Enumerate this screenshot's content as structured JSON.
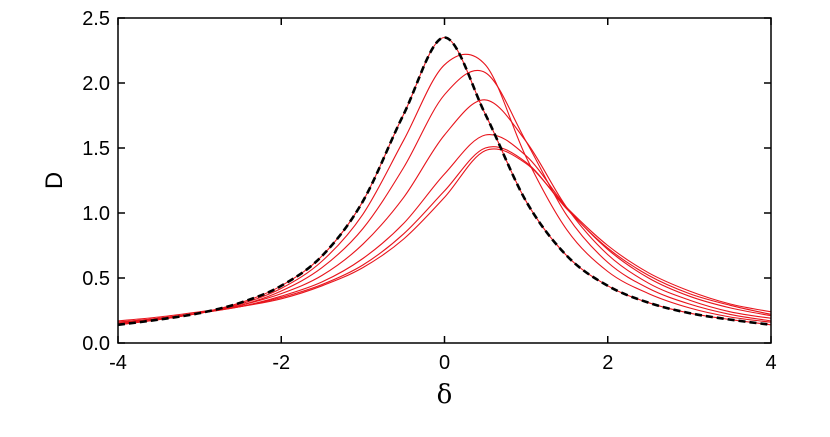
{
  "chart_data": {
    "type": "line",
    "title": "",
    "xlabel": "δ",
    "ylabel": "D",
    "xlim": [
      -4,
      4
    ],
    "ylim": [
      0,
      2.5
    ],
    "x_ticks": [
      -4,
      -2,
      0,
      2,
      4
    ],
    "y_ticks": [
      0.0,
      0.5,
      1.0,
      1.5,
      2.0,
      2.5
    ],
    "x_tick_labels": [
      "-4",
      "-2",
      "0",
      "2",
      "4"
    ],
    "y_tick_labels": [
      "0.0",
      "0.5",
      "1.0",
      "1.5",
      "2.0",
      "2.5"
    ],
    "grid": false,
    "legend": "none",
    "colors": {
      "series": "#e8141c",
      "reference": "#000000"
    },
    "x": [
      -4,
      -3.5,
      -3,
      -2.5,
      -2,
      -1.5,
      -1,
      -0.5,
      0,
      0.5,
      1,
      1.5,
      2,
      2.5,
      3,
      3.5,
      4
    ],
    "series": [
      {
        "style": "solid-red",
        "values": [
          0.14,
          0.18,
          0.23,
          0.31,
          0.44,
          0.67,
          1.09,
          1.76,
          2.35,
          1.76,
          1.09,
          0.67,
          0.44,
          0.31,
          0.23,
          0.18,
          0.14
        ]
      },
      {
        "style": "solid-red",
        "values": [
          0.14,
          0.18,
          0.23,
          0.3,
          0.42,
          0.63,
          0.99,
          1.56,
          2.14,
          2.14,
          1.43,
          0.87,
          0.55,
          0.38,
          0.27,
          0.2,
          0.16
        ]
      },
      {
        "style": "solid-red",
        "values": [
          0.15,
          0.18,
          0.23,
          0.29,
          0.4,
          0.58,
          0.88,
          1.35,
          1.91,
          2.08,
          1.55,
          0.98,
          0.62,
          0.42,
          0.3,
          0.22,
          0.17
        ]
      },
      {
        "style": "solid-red",
        "values": [
          0.15,
          0.19,
          0.23,
          0.29,
          0.38,
          0.52,
          0.76,
          1.12,
          1.6,
          1.87,
          1.55,
          1.04,
          0.68,
          0.46,
          0.33,
          0.24,
          0.19
        ]
      },
      {
        "style": "solid-red",
        "values": [
          0.16,
          0.19,
          0.23,
          0.28,
          0.36,
          0.47,
          0.65,
          0.92,
          1.3,
          1.6,
          1.44,
          1.04,
          0.72,
          0.5,
          0.36,
          0.27,
          0.21
        ]
      },
      {
        "style": "solid-red",
        "values": [
          0.16,
          0.19,
          0.23,
          0.28,
          0.35,
          0.45,
          0.6,
          0.84,
          1.17,
          1.5,
          1.39,
          1.03,
          0.73,
          0.52,
          0.38,
          0.29,
          0.22
        ]
      },
      {
        "style": "solid-red",
        "values": [
          0.17,
          0.2,
          0.24,
          0.28,
          0.34,
          0.44,
          0.58,
          0.8,
          1.12,
          1.48,
          1.38,
          1.04,
          0.75,
          0.54,
          0.4,
          0.3,
          0.24
        ]
      },
      {
        "style": "dashed-black",
        "values": [
          0.14,
          0.18,
          0.23,
          0.31,
          0.44,
          0.67,
          1.09,
          1.76,
          2.35,
          1.76,
          1.09,
          0.67,
          0.44,
          0.31,
          0.23,
          0.18,
          0.14
        ]
      }
    ]
  }
}
